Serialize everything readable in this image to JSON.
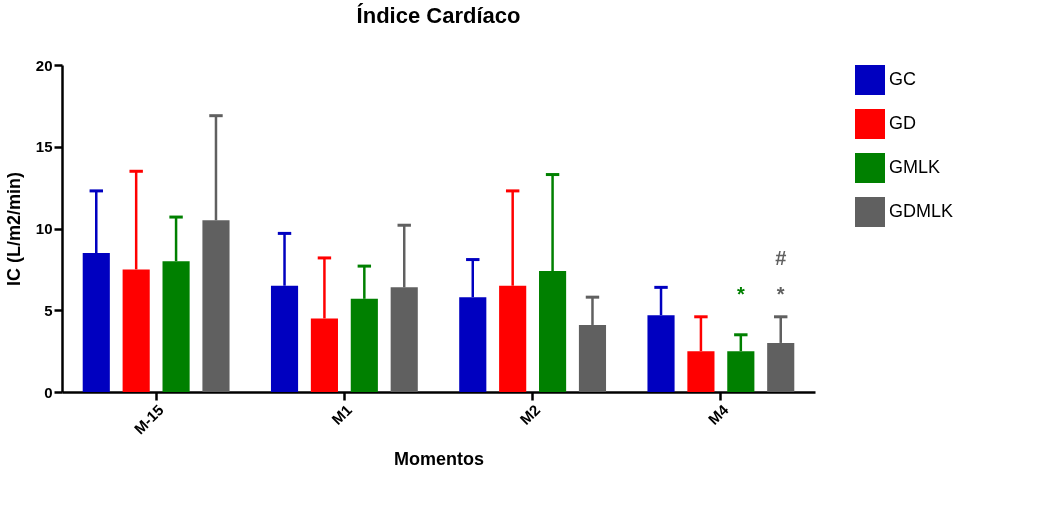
{
  "chart_data": {
    "type": "bar",
    "title": "Índice Cardíaco",
    "xlabel": "Momentos",
    "ylabel": "IC (L/m2/min)",
    "categories": [
      "M-15",
      "M1",
      "M2",
      "M4"
    ],
    "series": [
      {
        "name": "GC",
        "color": "#0000c0",
        "values": [
          8.5,
          6.5,
          5.8,
          4.7
        ],
        "errors": [
          [
            8.5,
            12.3
          ],
          [
            6.5,
            9.7
          ],
          [
            5.8,
            8.1
          ],
          [
            4.7,
            6.4
          ]
        ]
      },
      {
        "name": "GD",
        "color": "#ff0000",
        "values": [
          7.5,
          4.5,
          6.5,
          2.5
        ],
        "errors": [
          [
            7.5,
            13.5
          ],
          [
            4.5,
            8.2
          ],
          [
            6.5,
            12.3
          ],
          [
            2.5,
            4.6
          ]
        ]
      },
      {
        "name": "GMLK",
        "color": "#008000",
        "values": [
          8.0,
          5.7,
          7.4,
          2.5
        ],
        "errors": [
          [
            8.0,
            10.7
          ],
          [
            5.7,
            7.7
          ],
          [
            7.4,
            13.3
          ],
          [
            2.5,
            3.5
          ]
        ]
      },
      {
        "name": "GDMLK",
        "color": "#606060",
        "values": [
          10.5,
          6.4,
          4.1,
          3.0
        ],
        "errors": [
          [
            10.5,
            16.9
          ],
          [
            6.4,
            10.2
          ],
          [
            4.1,
            5.8
          ],
          [
            3.0,
            4.6
          ]
        ]
      }
    ],
    "annotations": [
      "*",
      "*",
      "#"
    ],
    "ylim": [
      0,
      20
    ],
    "yticks": [
      0,
      5,
      10,
      15,
      20
    ],
    "grid": false,
    "legend": "top right"
  }
}
